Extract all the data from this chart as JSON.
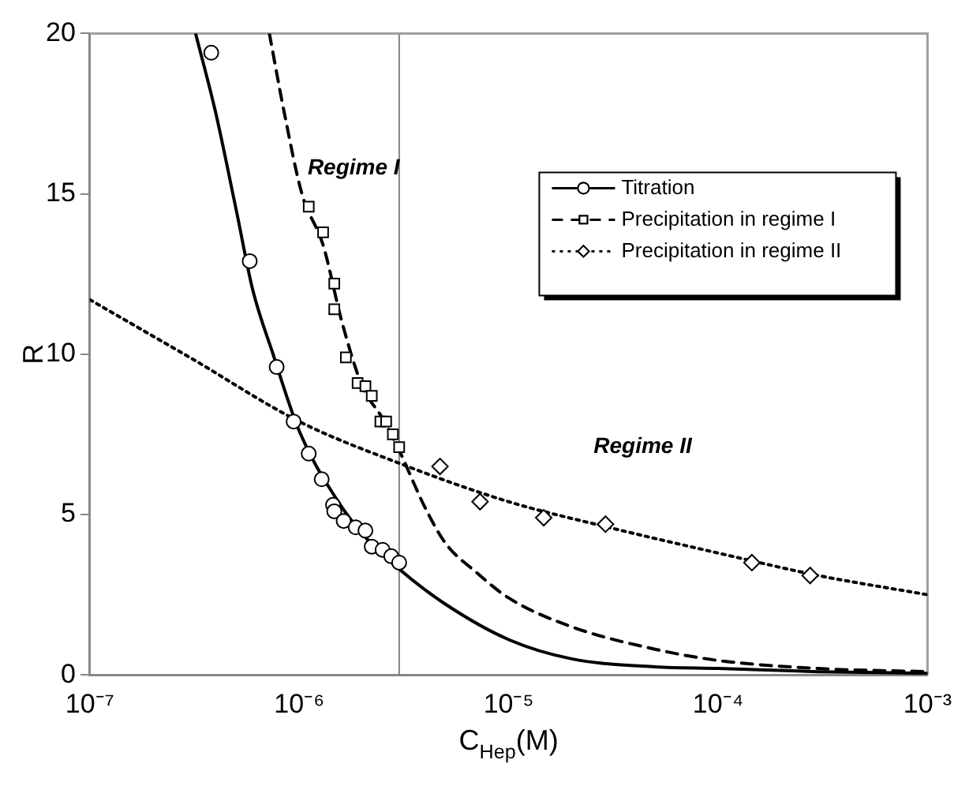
{
  "chart_data": {
    "type": "scatter",
    "xlabel": "C$_{Hep}$(M)",
    "ylabel": "R",
    "log": "x",
    "xlim": [
      1e-07,
      0.001
    ],
    "ylim": [
      0,
      20
    ],
    "xticks": [
      {
        "value": 1e-07,
        "label": "10⁻⁷"
      },
      {
        "value": 1e-06,
        "label": "10⁻⁶"
      },
      {
        "value": 1e-05,
        "label": "10⁻⁵"
      },
      {
        "value": 0.0001,
        "label": "10⁻⁴"
      },
      {
        "value": 0.001,
        "label": "10⁻³"
      }
    ],
    "yticks": [
      0,
      5,
      10,
      15,
      20
    ],
    "grid": false,
    "legend": "top right",
    "annotations": [
      "Regime I",
      "Regime II"
    ],
    "ref_lines": [
      {
        "axis": "x",
        "value": 3e-06,
        "color": "#808080"
      }
    ],
    "series": [
      {
        "name": "Titration",
        "type": "scatter",
        "marker": "circle",
        "line_style": "solid",
        "color": "#000000",
        "x": [
          3.8e-07,
          5.8e-07,
          7.8e-07,
          9.4e-07,
          1.11e-06,
          1.28e-06,
          1.45e-06,
          1.47e-06,
          1.63e-06,
          1.86e-06,
          2.07e-06,
          2.22e-06,
          2.5e-06,
          2.75e-06,
          3e-06
        ],
        "values": [
          19.4,
          12.9,
          9.6,
          7.9,
          6.9,
          6.1,
          5.3,
          5.1,
          4.8,
          4.6,
          4.5,
          4.0,
          3.9,
          3.7,
          3.5
        ]
      },
      {
        "name": "Precipitation in regime I",
        "type": "scatter",
        "marker": "square",
        "line_style": "dashed",
        "color": "#000000",
        "x": [
          1.11e-06,
          1.3e-06,
          1.47e-06,
          1.47e-06,
          1.67e-06,
          1.9e-06,
          2.07e-06,
          2.22e-06,
          2.44e-06,
          2.6e-06,
          2.8e-06,
          3e-06
        ],
        "values": [
          14.6,
          13.8,
          12.2,
          11.4,
          9.9,
          9.1,
          9.0,
          8.7,
          7.9,
          7.9,
          7.5,
          7.1
        ]
      },
      {
        "name": "Precipitation in regime II",
        "type": "scatter",
        "marker": "diamond",
        "line_style": "dotted",
        "color": "#000000",
        "x": [
          4.7e-06,
          7.3e-06,
          1.47e-05,
          2.9e-05,
          0.000145,
          0.000275
        ],
        "values": [
          6.5,
          5.4,
          4.9,
          4.7,
          3.5,
          3.1
        ]
      },
      {
        "type": "line",
        "line_style": "solid",
        "color": "#000000",
        "x": [
          3.2e-07,
          4e-07,
          5e-07,
          6e-07,
          7.5e-07,
          1e-06,
          1.5e-06,
          2e-06,
          3e-06,
          5e-06,
          1e-05,
          2e-05,
          5e-05,
          0.0001,
          0.0003,
          0.001
        ],
        "values": [
          20,
          17.5,
          14.5,
          12,
          10,
          7.6,
          5.5,
          4.4,
          3.3,
          2.2,
          1.1,
          0.5,
          0.25,
          0.2,
          0.1,
          0.05
        ]
      },
      {
        "type": "line",
        "line_style": "dashed",
        "color": "#000000",
        "x": [
          7.2e-07,
          8.5e-07,
          1.03e-06,
          1.3e-06,
          1.6e-06,
          2e-06,
          2.5e-06,
          3e-06,
          4e-06,
          5e-06,
          7e-06,
          1e-05,
          2e-05,
          5e-05,
          0.0001,
          0.0003,
          0.001
        ],
        "values": [
          20,
          17.5,
          15,
          13.4,
          11,
          9,
          8,
          7,
          5.2,
          4.1,
          3.2,
          2.4,
          1.5,
          0.8,
          0.45,
          0.2,
          0.1
        ]
      },
      {
        "type": "line",
        "line_style": "dotted",
        "color": "#000000",
        "x": [
          1e-07,
          3e-07,
          1e-06,
          3e-06,
          1e-05,
          3e-05,
          0.0001,
          0.0003,
          0.001
        ],
        "values": [
          11.7,
          9.9,
          7.9,
          6.6,
          5.4,
          4.6,
          3.8,
          3.1,
          2.5
        ]
      }
    ]
  }
}
